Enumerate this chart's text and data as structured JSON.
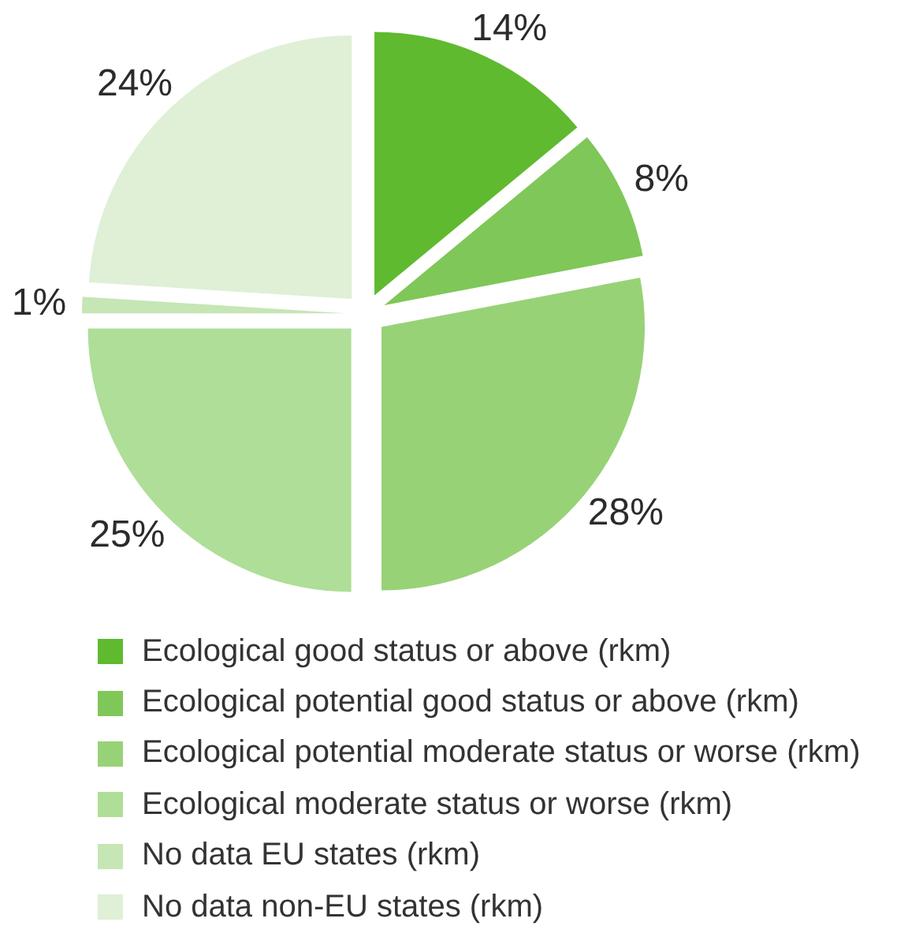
{
  "chart_data": {
    "type": "pie",
    "categories": [
      "Ecological good status or above (rkm)",
      "Ecological potential good status or above (rkm)",
      "Ecological potential moderate status or worse (rkm)",
      "Ecological moderate status or worse (rkm)",
      "No data EU states (rkm)",
      "No data non-EU states (rkm)"
    ],
    "values": [
      14,
      8,
      28,
      25,
      1,
      24
    ],
    "colors": [
      "#5fba2f",
      "#7fc758",
      "#98d277",
      "#aede97",
      "#c6e6b5",
      "#dff0d6"
    ],
    "value_labels": [
      "14%",
      "8%",
      "28%",
      "25%",
      "1%",
      "24%"
    ],
    "legend": "bottom"
  }
}
